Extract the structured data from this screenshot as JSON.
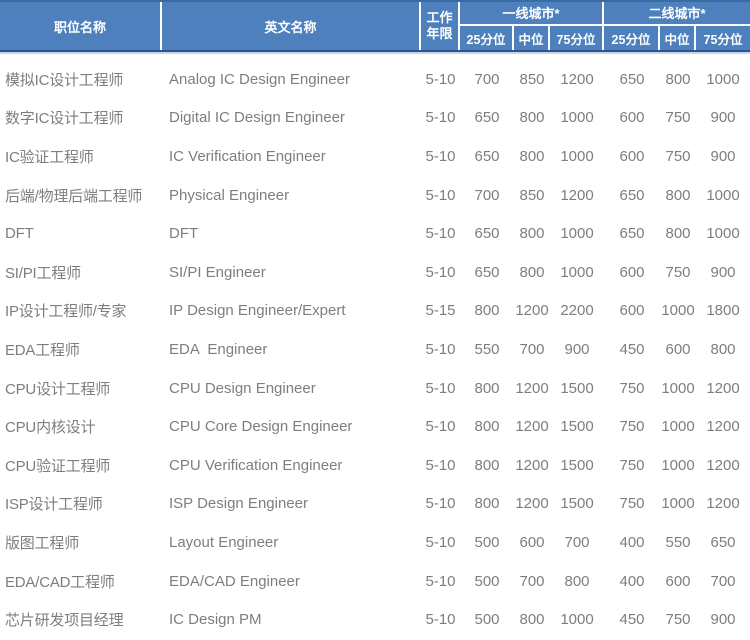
{
  "colors": {
    "header_fill": "#4d80bd",
    "header_border_top": "#3a6ba3",
    "header_border_dark": "#2b5592",
    "header_underline": "#c3d6ec",
    "header_text": "#ffffff",
    "body_text": "#7e7e7e"
  },
  "table": {
    "header": {
      "position": "职位名称",
      "english": "英文名称",
      "years_line1": "工作",
      "years_line2": "年限",
      "tier1": "一线城市*",
      "tier2": "二线城市*",
      "p25": "25分位",
      "p50": "中位",
      "p75": "75分位"
    },
    "rows": [
      {
        "position": "模拟IC设计工程师",
        "english": "Analog IC Design Engineer",
        "years": "5-10",
        "t1_p25": "700",
        "t1_p50": "850",
        "t1_p75": "1200",
        "t2_p25": "650",
        "t2_p50": "800",
        "t2_p75": "1000"
      },
      {
        "position": "数字IC设计工程师",
        "english": "Digital IC Design Engineer",
        "years": "5-10",
        "t1_p25": "650",
        "t1_p50": "800",
        "t1_p75": "1000",
        "t2_p25": "600",
        "t2_p50": "750",
        "t2_p75": "900"
      },
      {
        "position": "IC验证工程师",
        "english": "IC Verification Engineer",
        "years": "5-10",
        "t1_p25": "650",
        "t1_p50": "800",
        "t1_p75": "1000",
        "t2_p25": "600",
        "t2_p50": "750",
        "t2_p75": "900"
      },
      {
        "position": "后端/物理后端工程师",
        "english": "Physical Engineer",
        "years": "5-10",
        "t1_p25": "700",
        "t1_p50": "850",
        "t1_p75": "1200",
        "t2_p25": "650",
        "t2_p50": "800",
        "t2_p75": "1000"
      },
      {
        "position": "DFT",
        "english": "DFT",
        "years": "5-10",
        "t1_p25": "650",
        "t1_p50": "800",
        "t1_p75": "1000",
        "t2_p25": "650",
        "t2_p50": "800",
        "t2_p75": "1000"
      },
      {
        "position": "SI/PI工程师",
        "english": "SI/PI Engineer",
        "years": "5-10",
        "t1_p25": "650",
        "t1_p50": "800",
        "t1_p75": "1000",
        "t2_p25": "600",
        "t2_p50": "750",
        "t2_p75": "900"
      },
      {
        "position": "IP设计工程师/专家",
        "english": "IP Design Engineer/Expert",
        "years": "5-15",
        "t1_p25": "800",
        "t1_p50": "1200",
        "t1_p75": "2200",
        "t2_p25": "600",
        "t2_p50": "1000",
        "t2_p75": "1800"
      },
      {
        "position": "EDA工程师",
        "english": "EDA  Engineer",
        "years": "5-10",
        "t1_p25": "550",
        "t1_p50": "700",
        "t1_p75": "900",
        "t2_p25": "450",
        "t2_p50": "600",
        "t2_p75": "800"
      },
      {
        "position": "CPU设计工程师",
        "english": "CPU Design Engineer",
        "years": "5-10",
        "t1_p25": "800",
        "t1_p50": "1200",
        "t1_p75": "1500",
        "t2_p25": "750",
        "t2_p50": "1000",
        "t2_p75": "1200"
      },
      {
        "position": "CPU内核设计",
        "english": "CPU Core Design Engineer",
        "years": "5-10",
        "t1_p25": "800",
        "t1_p50": "1200",
        "t1_p75": "1500",
        "t2_p25": "750",
        "t2_p50": "1000",
        "t2_p75": "1200"
      },
      {
        "position": "CPU验证工程师",
        "english": "CPU Verification Engineer",
        "years": "5-10",
        "t1_p25": "800",
        "t1_p50": "1200",
        "t1_p75": "1500",
        "t2_p25": "750",
        "t2_p50": "1000",
        "t2_p75": "1200"
      },
      {
        "position": "ISP设计工程师",
        "english": "ISP Design Engineer",
        "years": "5-10",
        "t1_p25": "800",
        "t1_p50": "1200",
        "t1_p75": "1500",
        "t2_p25": "750",
        "t2_p50": "1000",
        "t2_p75": "1200"
      },
      {
        "position": "版图工程师",
        "english": "Layout Engineer",
        "years": "5-10",
        "t1_p25": "500",
        "t1_p50": "600",
        "t1_p75": "700",
        "t2_p25": "400",
        "t2_p50": "550",
        "t2_p75": "650"
      },
      {
        "position": "EDA/CAD工程师",
        "english": "EDA/CAD Engineer",
        "years": "5-10",
        "t1_p25": "500",
        "t1_p50": "700",
        "t1_p75": "800",
        "t2_p25": "400",
        "t2_p50": "600",
        "t2_p75": "700"
      },
      {
        "position": "芯片研发项目经理",
        "english": "IC Design PM",
        "years": "5-10",
        "t1_p25": "500",
        "t1_p50": "800",
        "t1_p75": "1000",
        "t2_p25": "450",
        "t2_p50": "750",
        "t2_p75": "900"
      }
    ]
  }
}
